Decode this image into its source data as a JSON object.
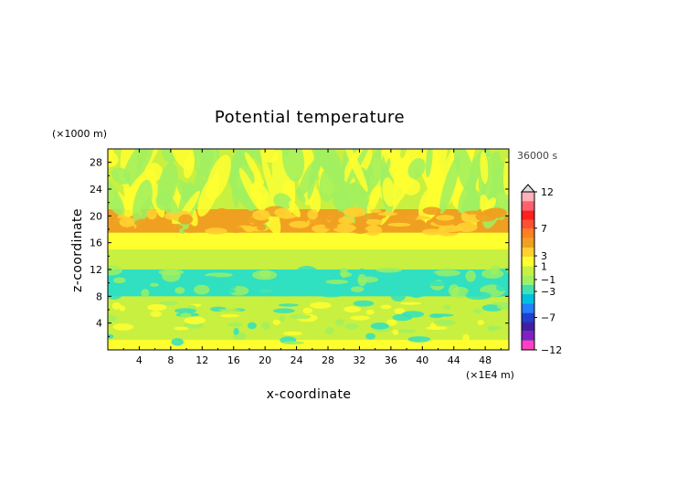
{
  "chart_data": {
    "type": "heatmap",
    "title": "Potential temperature",
    "xlabel": "x-coordinate",
    "ylabel": "z-coordinate",
    "x_unit": "(×1E4 m)",
    "y_unit": "(×1000 m)",
    "time_label": "36000 s",
    "xlim": [
      0,
      51
    ],
    "ylim": [
      0,
      30
    ],
    "x_ticks": [
      "4",
      "8",
      "12",
      "16",
      "20",
      "24",
      "28",
      "32",
      "36",
      "40",
      "44",
      "48"
    ],
    "y_ticks": [
      "4",
      "8",
      "12",
      "16",
      "20",
      "24",
      "28"
    ],
    "colorbar": {
      "labels": [
        "12",
        "7",
        "3",
        "1",
        "−1",
        "−3",
        "−7",
        "−12"
      ],
      "colors": [
        "#e0e0e0",
        "#ffb0b8",
        "#ff6070",
        "#ff2020",
        "#ff5030",
        "#ff8020",
        "#f0a020",
        "#ffd030",
        "#ffff30",
        "#c8f040",
        "#a0f060",
        "#40e0b0",
        "#00c0e0",
        "#2080ff",
        "#2040d0",
        "#4020a0",
        "#8020c0",
        "#ff40c0"
      ]
    },
    "bands": [
      {
        "z": [
          0,
          1.5
        ],
        "level": "1"
      },
      {
        "z": [
          1.5,
          5
        ],
        "level": "-1"
      },
      {
        "z": [
          5,
          8
        ],
        "level": "-1"
      },
      {
        "z": [
          8,
          12
        ],
        "level": "-3"
      },
      {
        "z": [
          12,
          15
        ],
        "level": "-1"
      },
      {
        "z": [
          15,
          17.5
        ],
        "level": "1"
      },
      {
        "z": [
          17.5,
          21
        ],
        "level": "3"
      },
      {
        "z": [
          21,
          30
        ],
        "level": "-1"
      }
    ]
  },
  "colors": {
    "yellow": "#ffff30",
    "yellowgreen": "#c8f040",
    "green": "#a0f060",
    "cyan": "#30e0c0",
    "orange": "#f0a020",
    "gold": "#ffd030"
  }
}
